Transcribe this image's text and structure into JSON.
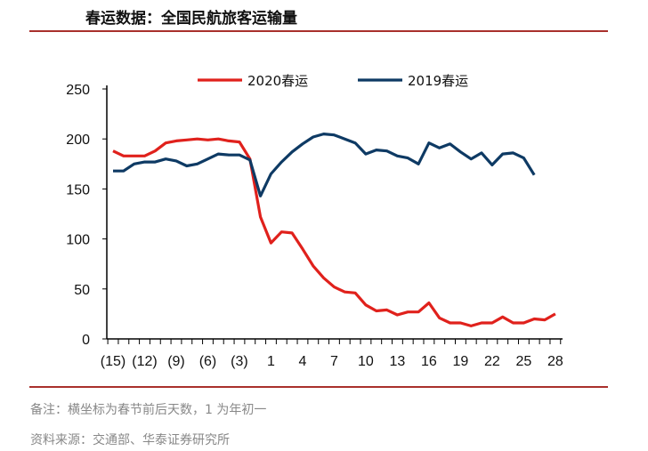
{
  "title": "春运数据：全国民航旅客运输量",
  "note": "备注：横坐标为春节前后天数，1 为年初一",
  "source": "资料来源：交通部、华泰证券研究所",
  "chart_data": {
    "type": "line",
    "title": "",
    "xlabel": "",
    "ylabel": "",
    "ylim": [
      0,
      250
    ],
    "yticks": [
      "0",
      "50",
      "100",
      "150",
      "200",
      "250"
    ],
    "x": [
      -15,
      -14,
      -13,
      -12,
      -11,
      -10,
      -9,
      -8,
      -7,
      -6,
      -5,
      -4,
      -3,
      -2,
      -1,
      1,
      2,
      3,
      4,
      5,
      6,
      7,
      8,
      9,
      10,
      11,
      12,
      13,
      14,
      15,
      16,
      17,
      18,
      19,
      20,
      21,
      22,
      23,
      24,
      25,
      26,
      27,
      28
    ],
    "xtick_labels": [
      "(15)",
      "(12)",
      "(9)",
      "(6)",
      "(3)",
      "1",
      "4",
      "7",
      "10",
      "13",
      "16",
      "19",
      "22",
      "25",
      "28"
    ],
    "legend_position": "top",
    "grid": false,
    "series": [
      {
        "name": "2020春运",
        "color": "#e0211c",
        "values": [
          188,
          183,
          183,
          183,
          188,
          196,
          198,
          199,
          200,
          199,
          200,
          198,
          197,
          180,
          122,
          96,
          107,
          106,
          90,
          73,
          61,
          52,
          47,
          46,
          34,
          28,
          29,
          24,
          27,
          27,
          36,
          21,
          16,
          16,
          13,
          16,
          16,
          22,
          16,
          16,
          20,
          19,
          25
        ]
      },
      {
        "name": "2019春运",
        "color": "#0e3a64",
        "values": [
          168,
          168,
          175,
          177,
          177,
          180,
          178,
          173,
          175,
          180,
          185,
          184,
          184,
          179,
          143,
          165,
          177,
          187,
          195,
          202,
          205,
          204,
          200,
          196,
          185,
          189,
          188,
          183,
          181,
          175,
          196,
          191,
          195,
          187,
          180,
          186,
          174,
          185,
          186,
          181,
          164,
          null,
          null
        ]
      }
    ]
  }
}
